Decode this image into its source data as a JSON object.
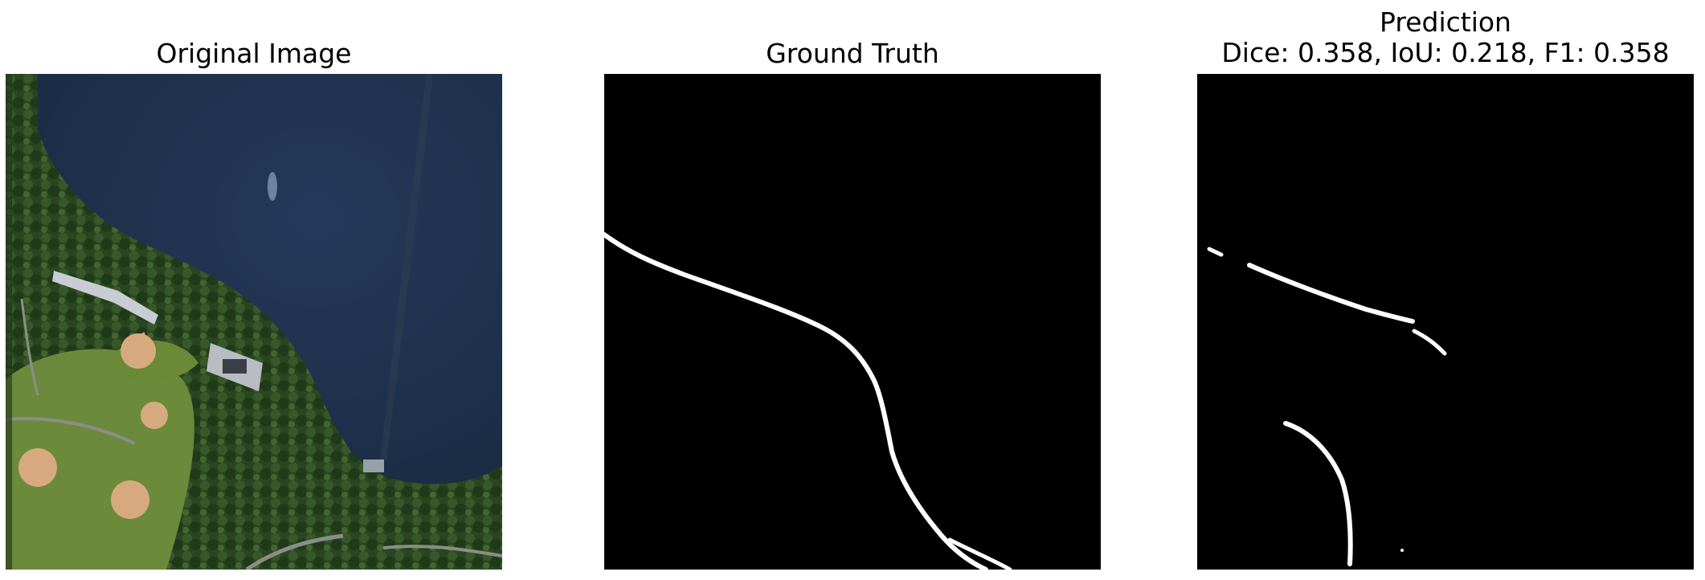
{
  "figure": {
    "panels": [
      {
        "title": "Original Image",
        "kind": "aerial-photo",
        "description_colors": {
          "water": "#1e3148",
          "trees": "#2c4a22",
          "grass": "#6e8a3e",
          "ballfield": "#d8ac80",
          "building": "#c9ccd2"
        }
      },
      {
        "title": "Ground Truth",
        "kind": "binary-mask",
        "background": "#000000",
        "foreground": "#ffffff"
      },
      {
        "title_line1": "Prediction",
        "title_line2": "Dice: 0.358, IoU: 0.218, F1: 0.358",
        "kind": "binary-mask",
        "background": "#000000",
        "foreground": "#ffffff",
        "metrics": {
          "dice": 0.358,
          "iou": 0.218,
          "f1": 0.358
        }
      }
    ]
  }
}
